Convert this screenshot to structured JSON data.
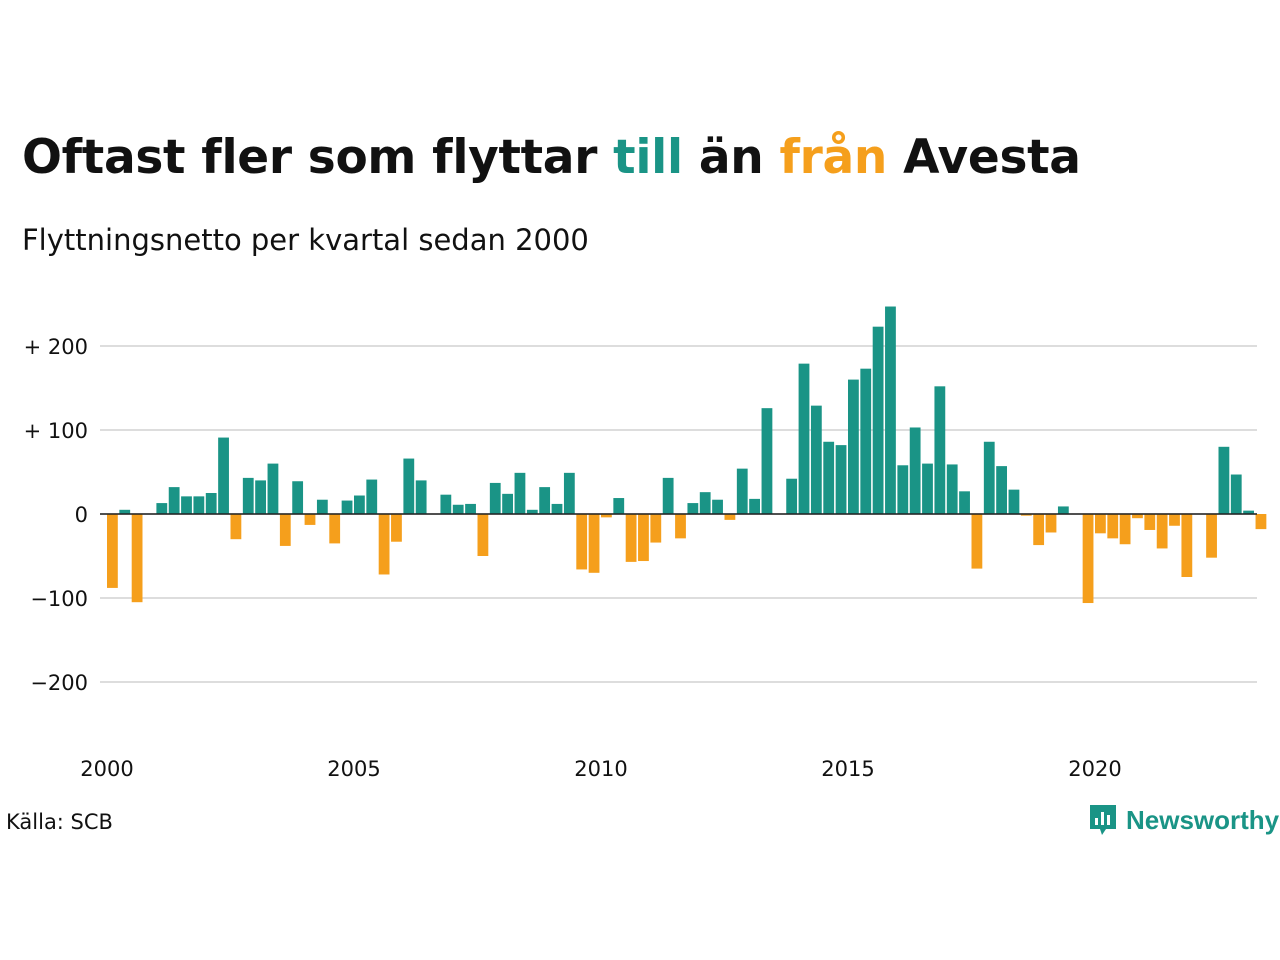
{
  "title": {
    "part1": "Oftast fler som flyttar ",
    "highlight_positive": "till",
    "part2": " än ",
    "highlight_negative": "från",
    "part3": " Avesta"
  },
  "subtitle": "Flyttningsnetto per kvartal sedan 2000",
  "source": "Källa: SCB",
  "brand": {
    "name": "Newsworthy",
    "icon": "newsworthy-logo-icon"
  },
  "colors": {
    "positive": "#1a9486",
    "negative": "#f59f1c",
    "grid": "#dddddd",
    "text": "#111111"
  },
  "chart_data": {
    "type": "bar",
    "x_start": "2000-Q1",
    "x_ticks": [
      "2000",
      "2005",
      "2010",
      "2015",
      "2020"
    ],
    "y_ticks": [
      200,
      100,
      0,
      -100,
      -200
    ],
    "y_tick_labels": [
      "+ 200",
      "+ 100",
      "0",
      "−100",
      "−200"
    ],
    "ylim": [
      -260,
      245
    ],
    "grid": true,
    "values": [
      -88,
      5,
      -105,
      0,
      13,
      32,
      21,
      21,
      25,
      91,
      -30,
      43,
      40,
      60,
      -38,
      39,
      -13,
      17,
      -35,
      16,
      22,
      41,
      -72,
      -33,
      66,
      40,
      0,
      23,
      11,
      12,
      -50,
      37,
      24,
      49,
      5,
      32,
      12,
      49,
      -66,
      -70,
      -4,
      19,
      -57,
      -56,
      -34,
      43,
      -29,
      13,
      26,
      17,
      -7,
      54,
      18,
      126,
      0,
      42,
      179,
      129,
      86,
      82,
      160,
      173,
      223,
      247,
      58,
      103,
      60,
      152,
      59,
      27,
      -65,
      86,
      57,
      29,
      -2,
      -37,
      -22,
      9,
      0,
      -106,
      -23,
      -29,
      -36,
      -5,
      -19,
      -41,
      -14,
      -75,
      0,
      -52,
      80,
      47,
      4,
      -18
    ]
  }
}
